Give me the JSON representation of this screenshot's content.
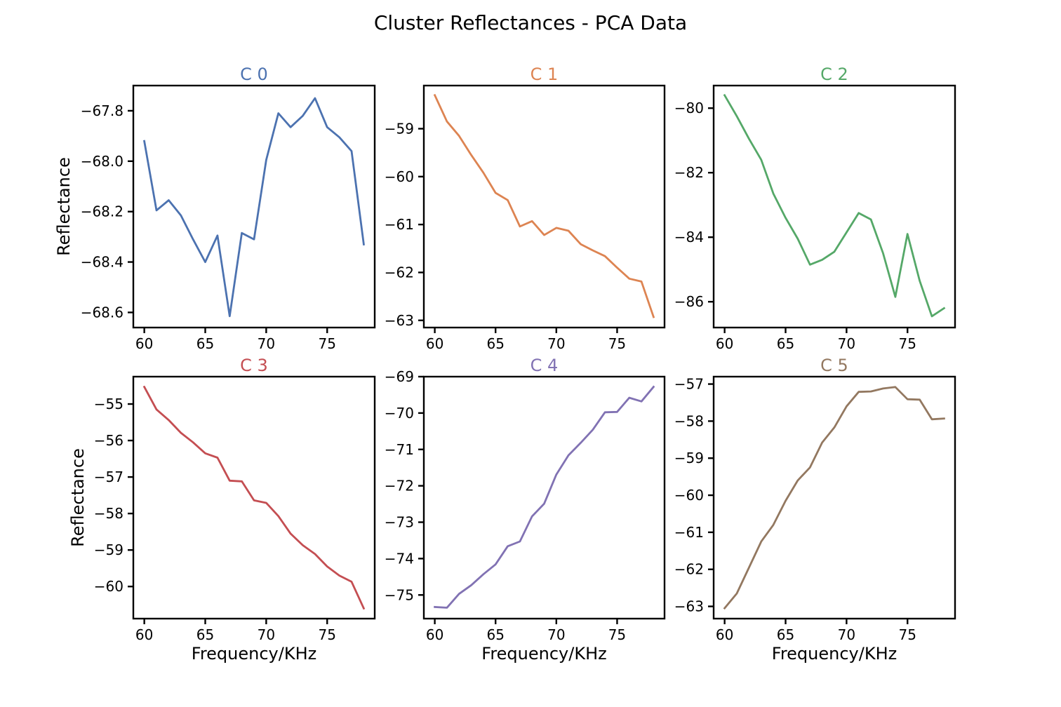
{
  "title": "Cluster Reflectances - PCA Data",
  "chart_data": [
    {
      "type": "line",
      "title": "C 0",
      "color": "#4c72b0",
      "xlabel": "",
      "ylabel": "Reflectance",
      "xlim": [
        59.1,
        78.9
      ],
      "ylim": [
        -68.66,
        -67.7
      ],
      "xticks": [
        60,
        65,
        70,
        75
      ],
      "yticks": [
        -67.8,
        -68.0,
        -68.2,
        -68.4,
        -68.6
      ],
      "ytick_labels": [
        "−67.8",
        "−68.0",
        "−68.2",
        "−68.4",
        "−68.6"
      ],
      "x": [
        60,
        61,
        62,
        63,
        64,
        65,
        66,
        67,
        68,
        69,
        70,
        71,
        72,
        73,
        74,
        75,
        76,
        77,
        78
      ],
      "y": [
        -67.92,
        -68.195,
        -68.155,
        -68.215,
        -68.31,
        -68.4,
        -68.295,
        -68.615,
        -68.285,
        -68.31,
        -67.995,
        -67.81,
        -67.865,
        -67.82,
        -67.75,
        -67.865,
        -67.905,
        -67.96,
        -68.33
      ]
    },
    {
      "type": "line",
      "title": "C 1",
      "color": "#dd8452",
      "xlabel": "",
      "ylabel": "",
      "xlim": [
        59.1,
        78.9
      ],
      "ylim": [
        -63.15,
        -58.1
      ],
      "xticks": [
        60,
        65,
        70,
        75
      ],
      "yticks": [
        -59,
        -60,
        -61,
        -62,
        -63
      ],
      "ytick_labels": [
        "−59",
        "−60",
        "−61",
        "−62",
        "−63"
      ],
      "x": [
        60,
        61,
        62,
        63,
        64,
        65,
        66,
        67,
        68,
        69,
        70,
        71,
        72,
        73,
        74,
        75,
        76,
        77,
        78
      ],
      "y": [
        -58.3,
        -58.85,
        -59.15,
        -59.55,
        -59.92,
        -60.34,
        -60.49,
        -61.04,
        -60.93,
        -61.22,
        -61.07,
        -61.13,
        -61.41,
        -61.54,
        -61.66,
        -61.9,
        -62.13,
        -62.19,
        -62.93
      ]
    },
    {
      "type": "line",
      "title": "C 2",
      "color": "#55a868",
      "xlabel": "",
      "ylabel": "",
      "xlim": [
        59.1,
        78.9
      ],
      "ylim": [
        -86.8,
        -79.3
      ],
      "xticks": [
        60,
        65,
        70,
        75
      ],
      "yticks": [
        -80,
        -82,
        -84,
        -86
      ],
      "ytick_labels": [
        "−80",
        "−82",
        "−84",
        "−86"
      ],
      "x": [
        60,
        61,
        62,
        63,
        64,
        65,
        66,
        67,
        68,
        69,
        70,
        71,
        72,
        73,
        74,
        75,
        76,
        77,
        78
      ],
      "y": [
        -79.6,
        -80.25,
        -80.95,
        -81.6,
        -82.65,
        -83.4,
        -84.05,
        -84.85,
        -84.7,
        -84.45,
        -83.85,
        -83.25,
        -83.45,
        -84.5,
        -85.85,
        -83.9,
        -85.35,
        -86.45,
        -86.2
      ]
    },
    {
      "type": "line",
      "title": "C 3",
      "color": "#c44e52",
      "xlabel": "Frequency/KHz",
      "ylabel": "Reflectance",
      "xlim": [
        59.1,
        78.9
      ],
      "ylim": [
        -60.88,
        -54.25
      ],
      "xticks": [
        60,
        65,
        70,
        75
      ],
      "yticks": [
        -55,
        -56,
        -57,
        -58,
        -59,
        -60
      ],
      "ytick_labels": [
        "−55",
        "−56",
        "−57",
        "−58",
        "−59",
        "−60"
      ],
      "x": [
        60,
        61,
        62,
        63,
        64,
        65,
        66,
        67,
        68,
        69,
        70,
        71,
        72,
        73,
        74,
        75,
        76,
        77,
        78
      ],
      "y": [
        -54.53,
        -55.15,
        -55.44,
        -55.79,
        -56.05,
        -56.35,
        -56.47,
        -57.1,
        -57.12,
        -57.64,
        -57.71,
        -58.07,
        -58.55,
        -58.87,
        -59.11,
        -59.45,
        -59.7,
        -59.87,
        -60.6
      ]
    },
    {
      "type": "line",
      "title": "C 4",
      "color": "#8172b3",
      "xlabel": "Frequency/KHz",
      "ylabel": "",
      "xlim": [
        59.1,
        78.9
      ],
      "ylim": [
        -75.65,
        -69.0
      ],
      "xticks": [
        60,
        65,
        70,
        75
      ],
      "yticks": [
        -69,
        -70,
        -71,
        -72,
        -73,
        -74,
        -75
      ],
      "ytick_labels": [
        "−69",
        "−70",
        "−71",
        "−72",
        "−73",
        "−74",
        "−75"
      ],
      "x": [
        60,
        61,
        62,
        63,
        64,
        65,
        66,
        67,
        68,
        69,
        70,
        71,
        72,
        73,
        74,
        75,
        76,
        77,
        78
      ],
      "y": [
        -75.33,
        -75.35,
        -74.97,
        -74.73,
        -74.43,
        -74.16,
        -73.66,
        -73.53,
        -72.84,
        -72.49,
        -71.69,
        -71.16,
        -70.82,
        -70.46,
        -69.98,
        -69.97,
        -69.58,
        -69.68,
        -69.28
      ]
    },
    {
      "type": "line",
      "title": "C 5",
      "color": "#937860",
      "xlabel": "Frequency/KHz",
      "ylabel": "",
      "xlim": [
        59.1,
        78.9
      ],
      "ylim": [
        -63.33,
        -56.8
      ],
      "xticks": [
        60,
        65,
        70,
        75
      ],
      "yticks": [
        -57,
        -58,
        -59,
        -60,
        -61,
        -62,
        -63
      ],
      "ytick_labels": [
        "−57",
        "−58",
        "−59",
        "−60",
        "−61",
        "−62",
        "−63"
      ],
      "x": [
        60,
        61,
        62,
        63,
        64,
        65,
        66,
        67,
        68,
        69,
        70,
        71,
        72,
        73,
        74,
        75,
        76,
        77,
        78
      ],
      "y": [
        -63.05,
        -62.65,
        -61.95,
        -61.25,
        -60.8,
        -60.15,
        -59.6,
        -59.25,
        -58.58,
        -58.17,
        -57.6,
        -57.21,
        -57.2,
        -57.12,
        -57.08,
        -57.41,
        -57.42,
        -57.95,
        -57.93
      ]
    }
  ]
}
